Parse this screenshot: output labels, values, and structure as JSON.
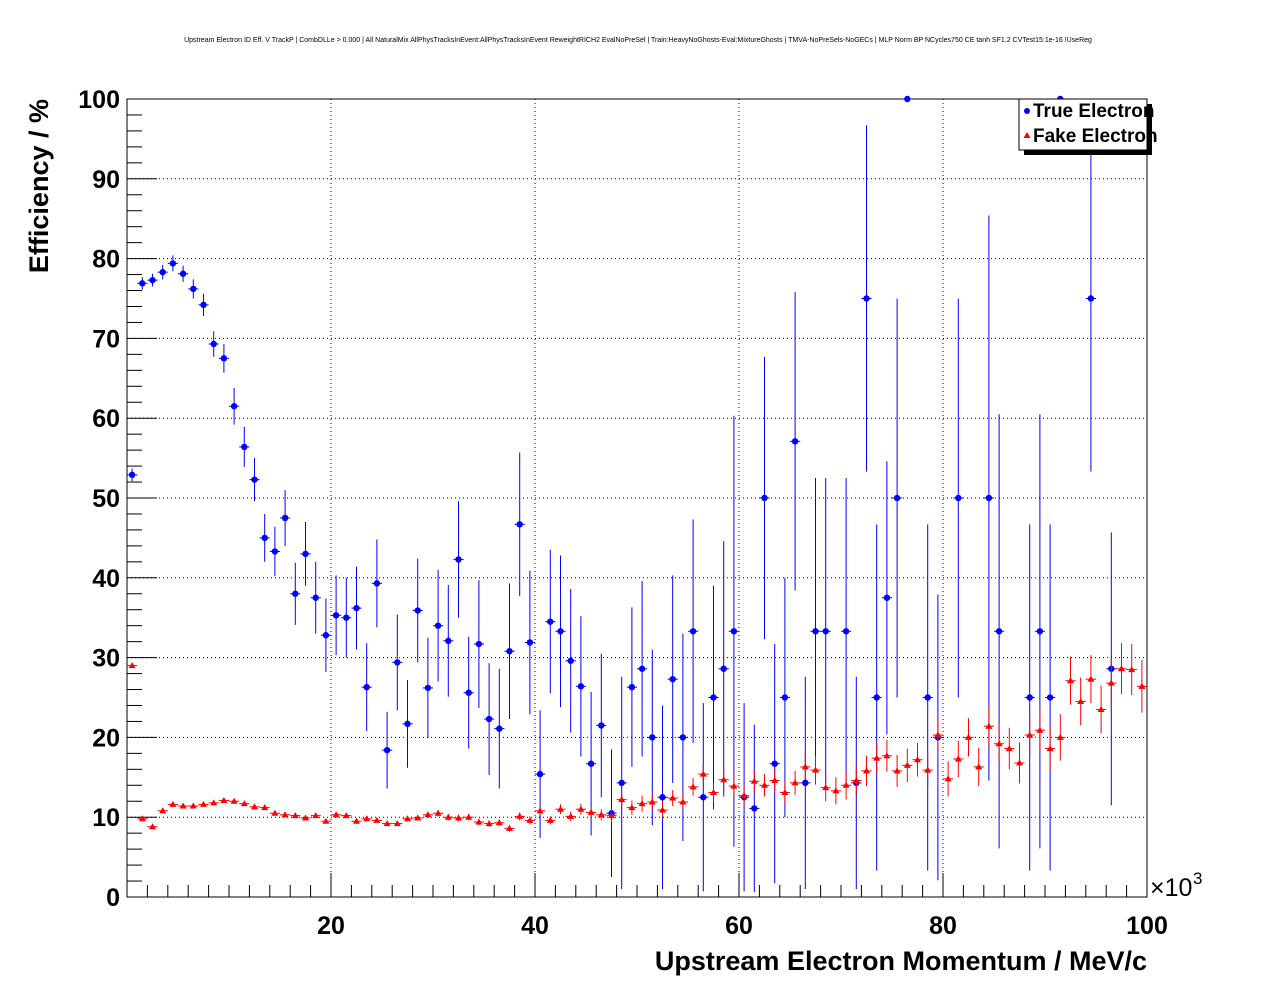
{
  "chart_data": {
    "type": "scatter",
    "title": "Upstream Electron ID Eff. V TrackP | CombDLLe > 0.000 | All NaturalMix AllPhysTracksInEvent:AllPhysTracksInEvent ReweightRICH2 EvalNoPreSel | Train:HeavyNoGhosts-Eval:MixtureGhosts | TMVA-NoPreSels-NoGECs | MLP Norm BP NCycles750 CE tanh SF1.2 CVTest15:1e-16 !UseReg",
    "xlabel": "Upstream Electron Momentum / MeV/c",
    "ylabel": "Efficiency / %",
    "x_multiplier_label": "×10",
    "x_multiplier_exp": "3",
    "xlim": [
      0,
      100
    ],
    "ylim": [
      0,
      100
    ],
    "x_ticks": [
      20,
      40,
      60,
      80,
      100
    ],
    "y_ticks": [
      0,
      10,
      20,
      30,
      40,
      50,
      60,
      70,
      80,
      90,
      100
    ],
    "grid": true,
    "legend_position": "top-right",
    "series": [
      {
        "name": "True Electron",
        "color": "#0000ff",
        "marker": "circle",
        "points": [
          [
            0.5,
            52.9,
            0.8
          ],
          [
            1.5,
            76.9,
            0.8
          ],
          [
            2.5,
            77.3,
            0.8
          ],
          [
            3.5,
            78.3,
            0.9
          ],
          [
            4.5,
            79.4,
            1.0
          ],
          [
            5.5,
            78.1,
            1.0
          ],
          [
            6.5,
            76.2,
            1.2
          ],
          [
            7.5,
            74.2,
            1.4
          ],
          [
            8.5,
            69.3,
            1.6
          ],
          [
            9.5,
            67.5,
            1.8
          ],
          [
            10.5,
            61.5,
            2.3
          ],
          [
            11.5,
            56.4,
            2.5
          ],
          [
            12.5,
            52.3,
            2.7
          ],
          [
            13.5,
            45.0,
            3.0
          ],
          [
            14.5,
            43.3,
            3.1
          ],
          [
            15.5,
            47.5,
            3.5
          ],
          [
            16.5,
            38.0,
            3.9
          ],
          [
            17.5,
            43.0,
            4.0
          ],
          [
            18.5,
            37.5,
            4.5
          ],
          [
            19.5,
            32.8,
            4.6
          ],
          [
            20.5,
            35.3,
            5.0
          ],
          [
            21.5,
            35.0,
            5.0
          ],
          [
            22.5,
            36.2,
            5.2
          ],
          [
            23.5,
            26.3,
            5.5
          ],
          [
            24.5,
            39.3,
            5.5
          ],
          [
            25.5,
            18.4,
            4.8
          ],
          [
            26.5,
            29.4,
            6.0
          ],
          [
            27.5,
            21.7,
            5.5
          ],
          [
            28.5,
            35.9,
            6.5
          ],
          [
            29.5,
            26.2,
            6.3
          ],
          [
            30.5,
            34.0,
            7.0
          ],
          [
            31.5,
            32.1,
            7.0
          ],
          [
            32.5,
            42.3,
            7.3
          ],
          [
            33.5,
            25.6,
            7.0
          ],
          [
            34.5,
            31.7,
            8.0
          ],
          [
            35.5,
            22.3,
            7.0
          ],
          [
            36.5,
            21.1,
            7.5
          ],
          [
            37.5,
            30.8,
            8.5
          ],
          [
            38.5,
            46.7,
            9.0
          ],
          [
            39.5,
            31.9,
            9.0
          ],
          [
            40.5,
            15.4,
            8.0
          ],
          [
            41.5,
            34.5,
            9.0
          ],
          [
            42.5,
            33.3,
            9.5
          ],
          [
            43.5,
            29.6,
            9.0
          ],
          [
            44.5,
            26.4,
            8.8
          ],
          [
            45.5,
            16.7,
            9.0
          ],
          [
            46.5,
            21.5,
            9.0
          ],
          [
            47.5,
            10.5,
            8.0
          ],
          [
            48.5,
            14.3,
            13.3
          ],
          [
            49.5,
            26.3,
            10.0
          ],
          [
            50.5,
            28.6,
            11.0
          ],
          [
            51.5,
            20.0,
            11.0
          ],
          [
            52.5,
            12.5,
            11.5
          ],
          [
            53.5,
            27.3,
            13.0
          ],
          [
            54.5,
            20.0,
            13.0
          ],
          [
            55.5,
            33.3,
            14.0
          ],
          [
            56.5,
            12.5,
            11.8
          ],
          [
            57.5,
            25.0,
            14.0
          ],
          [
            58.5,
            28.6,
            16.0
          ],
          [
            59.5,
            33.3,
            27.0
          ],
          [
            60.5,
            12.5,
            11.8
          ],
          [
            61.5,
            11.1,
            10.5
          ],
          [
            62.5,
            50.0,
            17.7
          ],
          [
            63.5,
            16.7,
            15.0
          ],
          [
            64.5,
            25.0,
            15.0
          ],
          [
            65.5,
            57.1,
            18.7
          ],
          [
            66.5,
            14.3,
            13.3
          ],
          [
            67.5,
            33.3,
            19.2
          ],
          [
            68.5,
            33.3,
            19.2
          ],
          [
            70.5,
            33.3,
            19.2
          ],
          [
            71.5,
            14.3,
            13.3
          ],
          [
            72.5,
            75.0,
            21.7
          ],
          [
            73.5,
            25.0,
            21.7
          ],
          [
            74.5,
            37.5,
            17.1
          ],
          [
            75.5,
            50.0,
            25.0
          ],
          [
            76.5,
            100.0,
            0.0
          ],
          [
            78.5,
            25.0,
            21.7
          ],
          [
            79.5,
            20.0,
            17.9
          ],
          [
            81.5,
            50.0,
            25.0
          ],
          [
            84.5,
            50.0,
            35.4
          ],
          [
            85.5,
            33.3,
            27.2
          ],
          [
            88.5,
            25.0,
            21.7
          ],
          [
            89.5,
            33.3,
            27.2
          ],
          [
            90.5,
            25.0,
            21.7
          ],
          [
            91.5,
            100.0,
            0.0
          ],
          [
            94.5,
            75.0,
            21.7
          ],
          [
            96.5,
            28.6,
            17.1
          ]
        ]
      },
      {
        "name": "Fake Electron",
        "color": "#ff0000",
        "marker": "triangle",
        "points": [
          [
            0.5,
            29.0,
            0.3
          ],
          [
            1.5,
            9.8,
            0.3
          ],
          [
            2.5,
            8.8,
            0.3
          ],
          [
            3.5,
            10.8,
            0.3
          ],
          [
            4.5,
            11.6,
            0.3
          ],
          [
            5.5,
            11.4,
            0.3
          ],
          [
            6.5,
            11.4,
            0.3
          ],
          [
            7.5,
            11.6,
            0.3
          ],
          [
            8.5,
            11.8,
            0.3
          ],
          [
            9.5,
            12.1,
            0.3
          ],
          [
            10.5,
            12.0,
            0.3
          ],
          [
            11.5,
            11.7,
            0.3
          ],
          [
            12.5,
            11.3,
            0.3
          ],
          [
            13.5,
            11.2,
            0.3
          ],
          [
            14.5,
            10.5,
            0.3
          ],
          [
            15.5,
            10.3,
            0.3
          ],
          [
            16.5,
            10.2,
            0.3
          ],
          [
            17.5,
            9.9,
            0.3
          ],
          [
            18.5,
            10.2,
            0.3
          ],
          [
            19.5,
            9.5,
            0.3
          ],
          [
            20.5,
            10.3,
            0.3
          ],
          [
            21.5,
            10.2,
            0.3
          ],
          [
            22.5,
            9.5,
            0.3
          ],
          [
            23.5,
            9.8,
            0.3
          ],
          [
            24.5,
            9.6,
            0.3
          ],
          [
            25.5,
            9.2,
            0.3
          ],
          [
            26.5,
            9.2,
            0.3
          ],
          [
            27.5,
            9.8,
            0.3
          ],
          [
            28.5,
            9.9,
            0.3
          ],
          [
            29.5,
            10.3,
            0.4
          ],
          [
            30.5,
            10.5,
            0.4
          ],
          [
            31.5,
            10.0,
            0.4
          ],
          [
            32.5,
            9.9,
            0.4
          ],
          [
            33.5,
            10.0,
            0.4
          ],
          [
            34.5,
            9.4,
            0.4
          ],
          [
            35.5,
            9.2,
            0.4
          ],
          [
            36.5,
            9.3,
            0.4
          ],
          [
            37.5,
            8.6,
            0.4
          ],
          [
            38.5,
            10.1,
            0.5
          ],
          [
            39.5,
            9.6,
            0.5
          ],
          [
            40.5,
            10.8,
            0.5
          ],
          [
            41.5,
            9.6,
            0.5
          ],
          [
            42.5,
            11.0,
            0.6
          ],
          [
            43.5,
            10.1,
            0.6
          ],
          [
            44.5,
            11.0,
            0.7
          ],
          [
            45.5,
            10.6,
            0.7
          ],
          [
            46.5,
            10.3,
            0.7
          ],
          [
            47.5,
            10.2,
            0.8
          ],
          [
            48.5,
            12.2,
            0.9
          ],
          [
            49.5,
            11.2,
            0.9
          ],
          [
            50.5,
            11.7,
            1.0
          ],
          [
            51.5,
            11.9,
            1.0
          ],
          [
            52.5,
            10.9,
            1.0
          ],
          [
            53.5,
            12.4,
            1.0
          ],
          [
            54.5,
            11.9,
            1.0
          ],
          [
            55.5,
            13.8,
            1.1
          ],
          [
            56.5,
            15.4,
            1.2
          ],
          [
            57.5,
            13.1,
            1.2
          ],
          [
            58.5,
            14.7,
            1.3
          ],
          [
            59.5,
            13.9,
            1.3
          ],
          [
            60.5,
            12.7,
            1.3
          ],
          [
            61.5,
            14.5,
            1.4
          ],
          [
            62.5,
            14.0,
            1.4
          ],
          [
            63.5,
            14.6,
            1.5
          ],
          [
            64.5,
            13.1,
            1.5
          ],
          [
            65.5,
            14.3,
            1.5
          ],
          [
            66.5,
            16.3,
            1.6
          ],
          [
            67.5,
            15.9,
            1.7
          ],
          [
            68.5,
            13.7,
            1.7
          ],
          [
            69.5,
            13.3,
            1.7
          ],
          [
            70.5,
            14.0,
            1.8
          ],
          [
            71.5,
            14.6,
            1.8
          ],
          [
            72.5,
            15.8,
            1.9
          ],
          [
            73.5,
            17.4,
            1.9
          ],
          [
            74.5,
            17.7,
            2.0
          ],
          [
            75.5,
            15.8,
            2.0
          ],
          [
            76.5,
            16.5,
            2.1
          ],
          [
            77.5,
            17.2,
            2.1
          ],
          [
            78.5,
            15.9,
            2.2
          ],
          [
            79.5,
            20.3,
            2.3
          ],
          [
            80.5,
            14.8,
            2.2
          ],
          [
            81.5,
            17.3,
            2.3
          ],
          [
            82.5,
            20.0,
            2.4
          ],
          [
            83.5,
            16.3,
            2.4
          ],
          [
            84.5,
            21.4,
            2.5
          ],
          [
            85.5,
            19.2,
            2.5
          ],
          [
            86.5,
            18.6,
            2.6
          ],
          [
            87.5,
            16.8,
            2.6
          ],
          [
            88.5,
            20.3,
            2.7
          ],
          [
            89.5,
            20.9,
            2.8
          ],
          [
            90.5,
            18.6,
            2.8
          ],
          [
            91.5,
            20.0,
            2.9
          ],
          [
            92.5,
            27.1,
            3.0
          ],
          [
            93.5,
            24.5,
            3.0
          ],
          [
            94.5,
            27.3,
            3.0
          ],
          [
            95.5,
            23.5,
            3.0
          ],
          [
            96.5,
            26.8,
            3.1
          ],
          [
            97.5,
            28.6,
            3.2
          ],
          [
            98.5,
            28.5,
            3.2
          ],
          [
            99.5,
            26.4,
            3.3
          ]
        ]
      }
    ]
  }
}
